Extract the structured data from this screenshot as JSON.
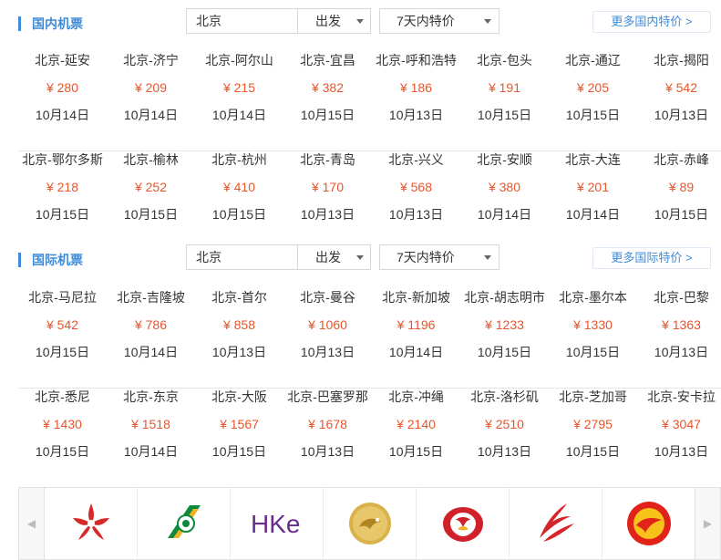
{
  "domestic": {
    "title": "国内机票",
    "city_value": "北京",
    "direction": "出发",
    "days": "7天内特价",
    "more": "更多国内特价 >",
    "rows": [
      [
        {
          "route": "北京-延安",
          "price": "¥ 280",
          "date": "10月14日"
        },
        {
          "route": "北京-济宁",
          "price": "¥ 209",
          "date": "10月14日"
        },
        {
          "route": "北京-阿尔山",
          "price": "¥ 215",
          "date": "10月14日"
        },
        {
          "route": "北京-宜昌",
          "price": "¥ 382",
          "date": "10月15日"
        },
        {
          "route": "北京-呼和浩特",
          "price": "¥ 186",
          "date": "10月13日"
        },
        {
          "route": "北京-包头",
          "price": "¥ 191",
          "date": "10月15日"
        },
        {
          "route": "北京-通辽",
          "price": "¥ 205",
          "date": "10月15日"
        },
        {
          "route": "北京-揭阳",
          "price": "¥ 542",
          "date": "10月13日"
        }
      ],
      [
        {
          "route": "北京-鄂尔多斯",
          "price": "¥ 218",
          "date": "10月15日"
        },
        {
          "route": "北京-榆林",
          "price": "¥ 252",
          "date": "10月15日"
        },
        {
          "route": "北京-杭州",
          "price": "¥ 410",
          "date": "10月15日"
        },
        {
          "route": "北京-青岛",
          "price": "¥ 170",
          "date": "10月13日"
        },
        {
          "route": "北京-兴义",
          "price": "¥ 568",
          "date": "10月13日"
        },
        {
          "route": "北京-安顺",
          "price": "¥ 380",
          "date": "10月14日"
        },
        {
          "route": "北京-大连",
          "price": "¥ 201",
          "date": "10月14日"
        },
        {
          "route": "北京-赤峰",
          "price": "¥ 89",
          "date": "10月15日"
        }
      ]
    ]
  },
  "international": {
    "title": "国际机票",
    "city_value": "北京",
    "direction": "出发",
    "days": "7天内特价",
    "more": "更多国际特价 >",
    "rows": [
      [
        {
          "route": "北京-马尼拉",
          "price": "¥ 542",
          "date": "10月15日"
        },
        {
          "route": "北京-吉隆坡",
          "price": "¥ 786",
          "date": "10月14日"
        },
        {
          "route": "北京-首尔",
          "price": "¥ 858",
          "date": "10月13日"
        },
        {
          "route": "北京-曼谷",
          "price": "¥ 1060",
          "date": "10月13日"
        },
        {
          "route": "北京-新加坡",
          "price": "¥ 1196",
          "date": "10月14日"
        },
        {
          "route": "北京-胡志明市",
          "price": "¥ 1233",
          "date": "10月15日"
        },
        {
          "route": "北京-墨尔本",
          "price": "¥ 1330",
          "date": "10月15日"
        },
        {
          "route": "北京-巴黎",
          "price": "¥ 1363",
          "date": "10月13日"
        }
      ],
      [
        {
          "route": "北京-悉尼",
          "price": "¥ 1430",
          "date": "10月15日"
        },
        {
          "route": "北京-东京",
          "price": "¥ 1518",
          "date": "10月14日"
        },
        {
          "route": "北京-大阪",
          "price": "¥ 1567",
          "date": "10月15日"
        },
        {
          "route": "北京-巴塞罗那",
          "price": "¥ 1678",
          "date": "10月13日"
        },
        {
          "route": "北京-冲绳",
          "price": "¥ 2140",
          "date": "10月15日"
        },
        {
          "route": "北京-洛杉矶",
          "price": "¥ 2510",
          "date": "10月13日"
        },
        {
          "route": "北京-芝加哥",
          "price": "¥ 2795",
          "date": "10月15日"
        },
        {
          "route": "北京-安卡拉",
          "price": "¥ 3047",
          "date": "10月13日"
        }
      ]
    ]
  },
  "airlines": {
    "prev": "◀",
    "next": "▶",
    "logos": [
      {
        "icon": "hong-kong-airlines-logo-icon",
        "color": "#d62a2a"
      },
      {
        "icon": "eva-air-logo-icon",
        "color": "#0f8a3c"
      },
      {
        "icon": "hk-express-logo-icon",
        "color": "#6b2c8f"
      },
      {
        "icon": "golden-dragon-logo-icon",
        "color": "#c9a23a"
      },
      {
        "icon": "hainan-airlines-logo-icon",
        "color": "#d0202a"
      },
      {
        "icon": "sichuan-airlines-logo-icon",
        "color": "#d6242a"
      },
      {
        "icon": "juneyao-airlines-logo-icon",
        "color": "#e2231a"
      }
    ],
    "hke_text": "HKe"
  },
  "accent_color": "#3f8bd8",
  "price_color": "#e8552b"
}
